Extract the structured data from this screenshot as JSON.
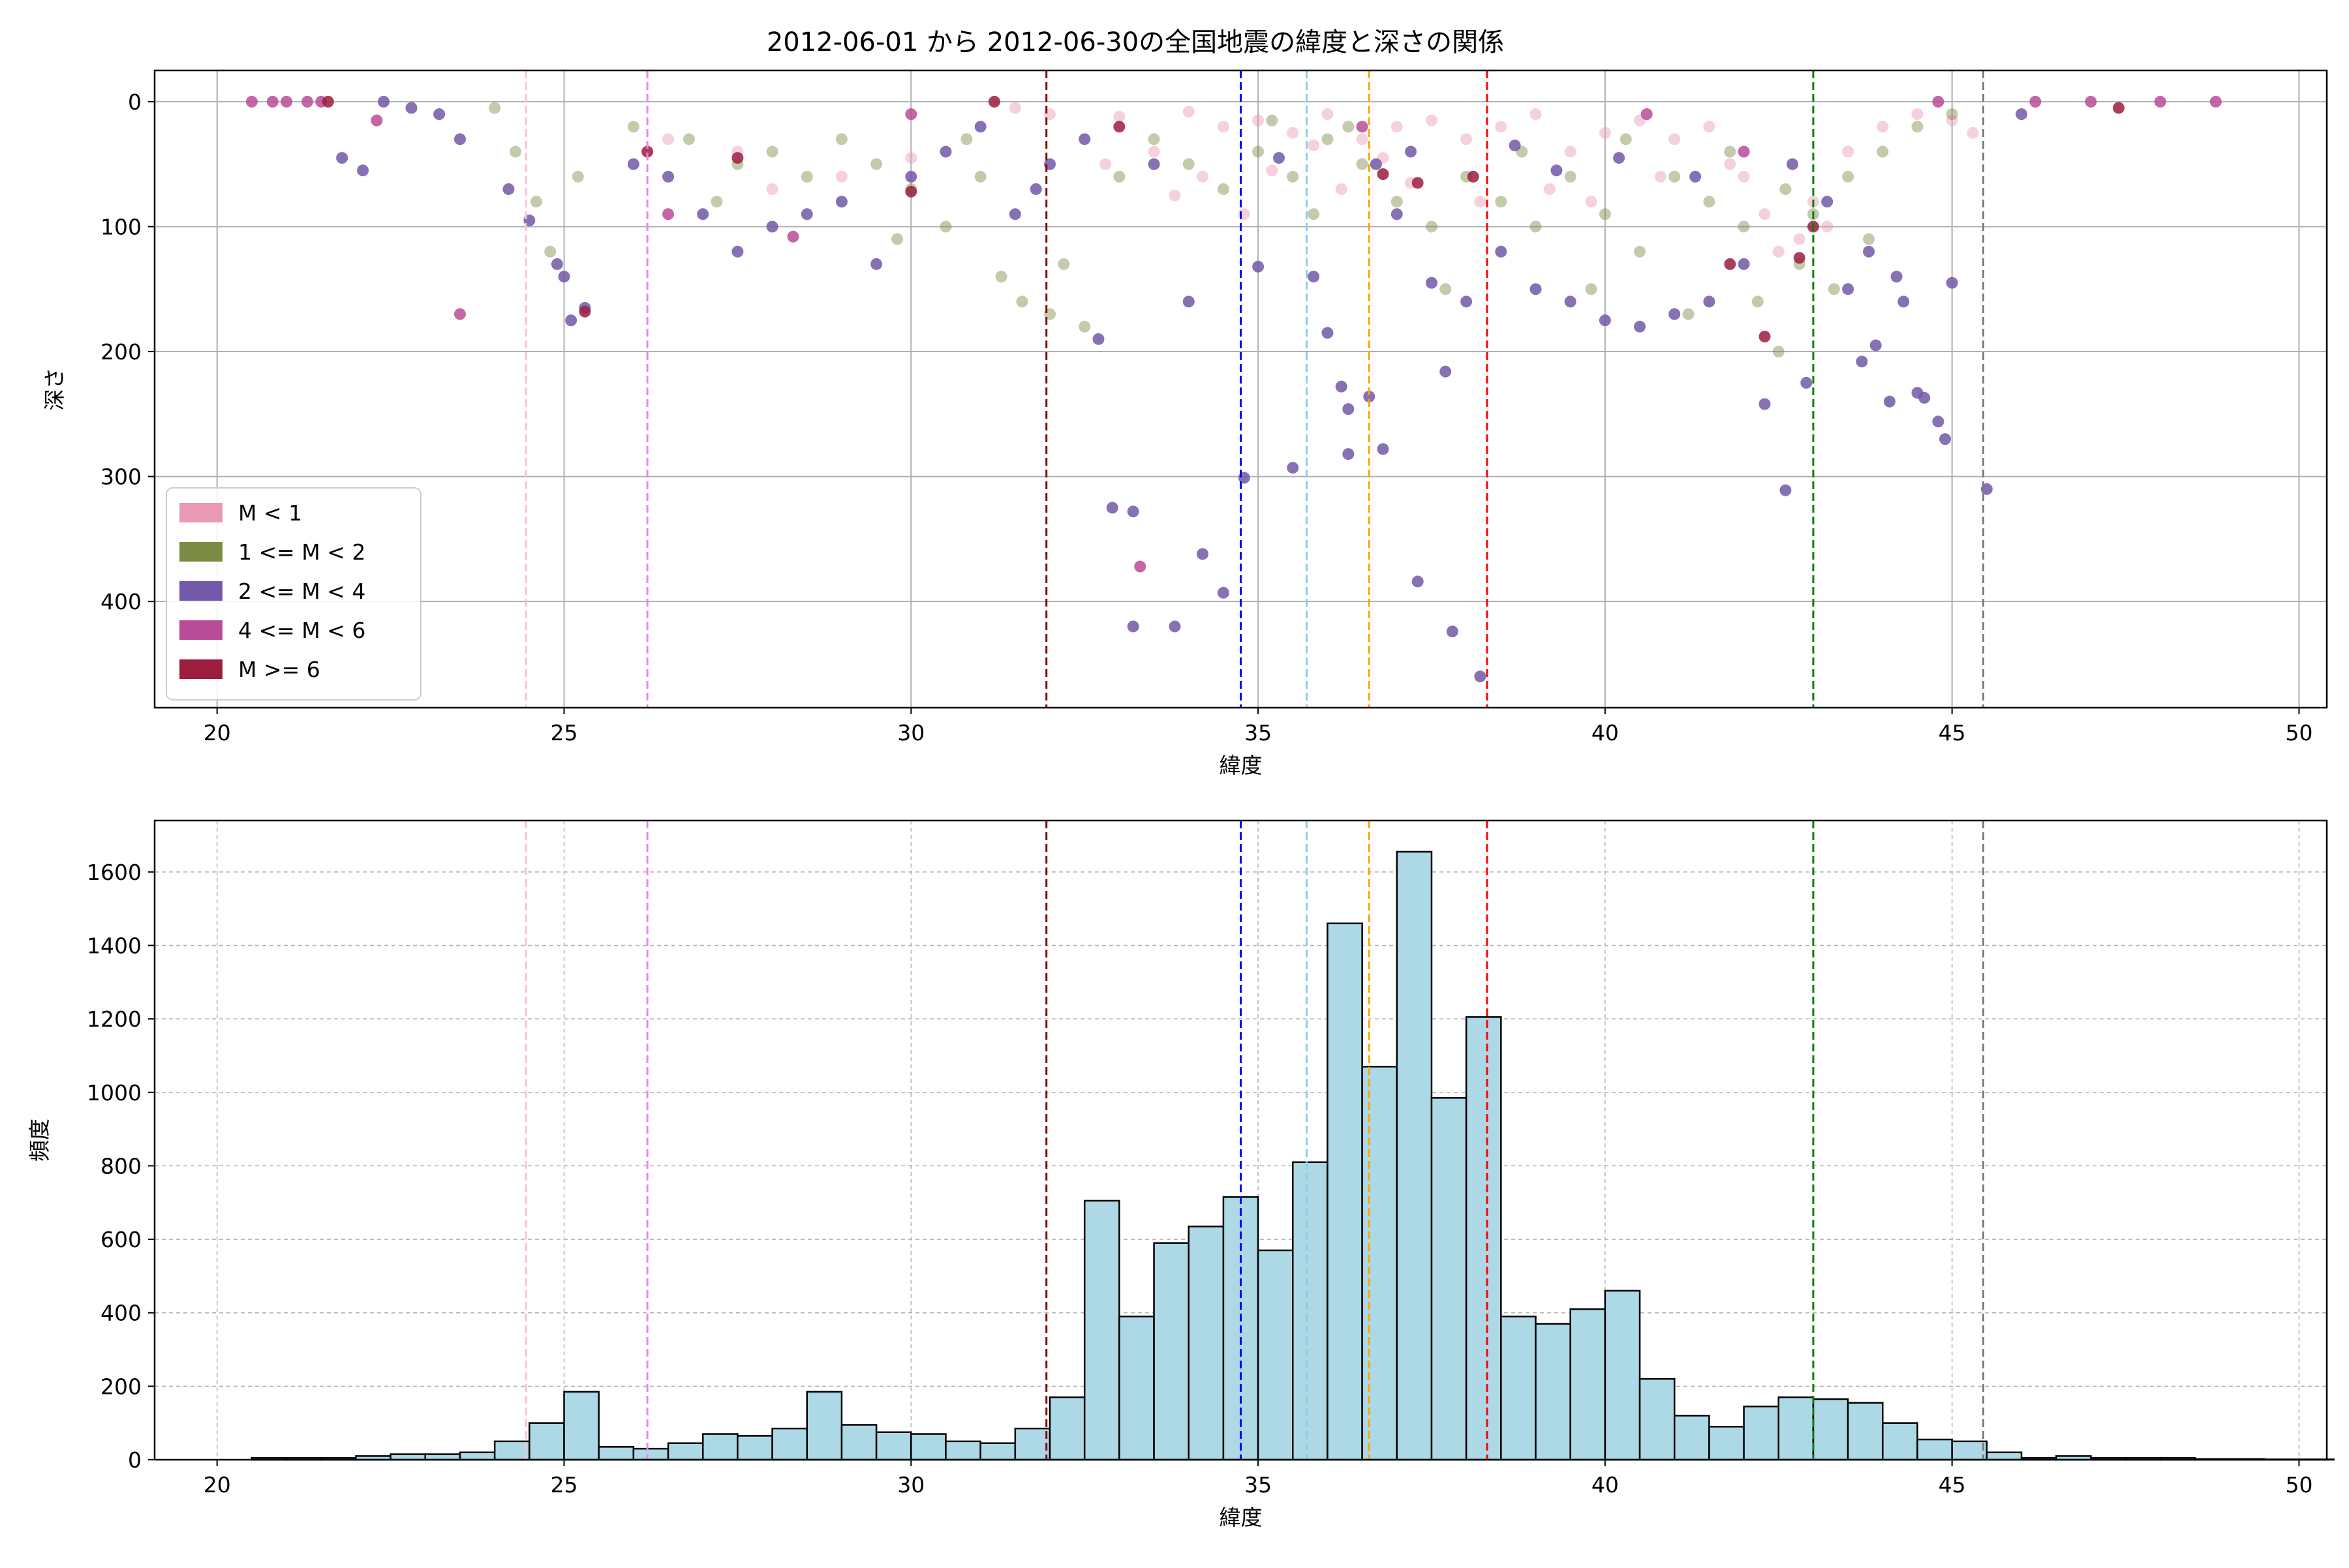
{
  "title": "2012-06-01 から 2012-06-30の全国地震の緯度と深さの関係",
  "colors": {
    "mag_lt1": "#e899b4",
    "mag_1_2": "#7b8b44",
    "mag_2_4": "#7158a8",
    "mag_4_6": "#b84c98",
    "mag_ge6": "#9c1d3e",
    "hist_bar": "#add8e6",
    "vline_pink": "#ffc0cb",
    "vline_violet": "#ee82ee",
    "vline_darkred": "#8b0000",
    "vline_blue": "#0000ff",
    "vline_skyblue": "#87ceeb",
    "vline_orange": "#ffa500",
    "vline_red": "#ff0000",
    "vline_green": "#008000",
    "vline_gray": "#808080"
  },
  "chart_data": [
    {
      "type": "scatter",
      "title": "2012-06-01 から 2012-06-30の全国地震の緯度と深さの関係",
      "xlabel": "緯度",
      "ylabel": "深さ",
      "xlim": [
        19.1,
        50.4
      ],
      "ylim": [
        485,
        -25
      ],
      "y_inverted": true,
      "grid": true,
      "legend_position": "lower-left",
      "x_ticks": [
        20,
        25,
        30,
        35,
        40,
        45,
        50
      ],
      "y_ticks": [
        0,
        100,
        200,
        300,
        400
      ],
      "vlines": [
        {
          "x": 24.45,
          "color": "#ffc0cb"
        },
        {
          "x": 26.2,
          "color": "#ee82ee"
        },
        {
          "x": 31.95,
          "color": "#8b0000"
        },
        {
          "x": 34.75,
          "color": "#0000ff"
        },
        {
          "x": 35.7,
          "color": "#87ceeb"
        },
        {
          "x": 36.6,
          "color": "#ffa500"
        },
        {
          "x": 38.3,
          "color": "#ff0000"
        },
        {
          "x": 43.0,
          "color": "#008000"
        },
        {
          "x": 45.45,
          "color": "#808080"
        }
      ],
      "series": [
        {
          "name": "M < 1",
          "color": "#e899b4",
          "points": [
            [
              31.5,
              5
            ],
            [
              32.0,
              10
            ],
            [
              33.0,
              12
            ],
            [
              34.0,
              8
            ],
            [
              34.5,
              20
            ],
            [
              35.0,
              15
            ],
            [
              35.5,
              25
            ],
            [
              36.0,
              10
            ],
            [
              36.5,
              30
            ],
            [
              37.0,
              20
            ],
            [
              37.5,
              15
            ],
            [
              38.0,
              30
            ],
            [
              38.5,
              20
            ],
            [
              39.0,
              10
            ],
            [
              39.5,
              40
            ],
            [
              40.0,
              25
            ],
            [
              40.5,
              15
            ],
            [
              41.0,
              30
            ],
            [
              41.5,
              20
            ],
            [
              42.0,
              60
            ],
            [
              42.3,
              90
            ],
            [
              42.8,
              110
            ],
            [
              43.0,
              80
            ],
            [
              43.5,
              40
            ],
            [
              44.0,
              20
            ],
            [
              44.5,
              10
            ],
            [
              45.0,
              15
            ],
            [
              45.3,
              25
            ],
            [
              33.5,
              40
            ],
            [
              34.2,
              60
            ],
            [
              35.2,
              55
            ],
            [
              36.2,
              70
            ],
            [
              37.2,
              65
            ],
            [
              38.2,
              80
            ],
            [
              39.2,
              70
            ],
            [
              30.0,
              45
            ],
            [
              29.0,
              60
            ],
            [
              28.0,
              70
            ],
            [
              27.5,
              40
            ],
            [
              26.5,
              30
            ],
            [
              36.8,
              45
            ],
            [
              35.8,
              35
            ],
            [
              34.8,
              90
            ],
            [
              33.8,
              75
            ],
            [
              32.8,
              50
            ],
            [
              41.8,
              50
            ],
            [
              42.5,
              120
            ],
            [
              43.2,
              100
            ],
            [
              40.8,
              60
            ],
            [
              39.8,
              80
            ]
          ]
        },
        {
          "name": "1 <= M < 2",
          "color": "#7b8b44",
          "points": [
            [
              24.0,
              5
            ],
            [
              24.3,
              40
            ],
            [
              24.6,
              80
            ],
            [
              24.8,
              120
            ],
            [
              25.2,
              60
            ],
            [
              26.0,
              20
            ],
            [
              26.8,
              30
            ],
            [
              27.5,
              50
            ],
            [
              28.0,
              40
            ],
            [
              28.5,
              60
            ],
            [
              29.0,
              30
            ],
            [
              29.5,
              50
            ],
            [
              30.0,
              70
            ],
            [
              30.5,
              100
            ],
            [
              31.0,
              60
            ],
            [
              31.3,
              140
            ],
            [
              31.6,
              160
            ],
            [
              32.0,
              170
            ],
            [
              32.5,
              180
            ],
            [
              32.2,
              130
            ],
            [
              33.0,
              60
            ],
            [
              33.5,
              30
            ],
            [
              34.0,
              50
            ],
            [
              34.5,
              70
            ],
            [
              35.0,
              40
            ],
            [
              35.5,
              60
            ],
            [
              35.8,
              90
            ],
            [
              36.0,
              30
            ],
            [
              36.5,
              50
            ],
            [
              37.0,
              80
            ],
            [
              37.5,
              100
            ],
            [
              37.7,
              150
            ],
            [
              38.0,
              60
            ],
            [
              38.5,
              80
            ],
            [
              39.0,
              100
            ],
            [
              39.5,
              60
            ],
            [
              39.8,
              150
            ],
            [
              40.0,
              90
            ],
            [
              40.5,
              120
            ],
            [
              41.0,
              60
            ],
            [
              41.2,
              170
            ],
            [
              41.5,
              80
            ],
            [
              42.0,
              100
            ],
            [
              42.2,
              160
            ],
            [
              42.5,
              200
            ],
            [
              42.8,
              130
            ],
            [
              43.0,
              90
            ],
            [
              43.3,
              150
            ],
            [
              43.5,
              60
            ],
            [
              44.0,
              40
            ],
            [
              44.5,
              20
            ],
            [
              45.0,
              10
            ],
            [
              36.3,
              20
            ],
            [
              35.2,
              15
            ],
            [
              38.8,
              40
            ],
            [
              40.3,
              30
            ],
            [
              41.8,
              40
            ],
            [
              42.6,
              70
            ],
            [
              43.8,
              110
            ],
            [
              30.8,
              30
            ],
            [
              29.8,
              110
            ],
            [
              27.2,
              80
            ]
          ]
        },
        {
          "name": "2 <= M < 4",
          "color": "#7158a8",
          "points": [
            [
              22.4,
              0
            ],
            [
              22.8,
              5
            ],
            [
              23.2,
              10
            ],
            [
              23.5,
              30
            ],
            [
              21.8,
              45
            ],
            [
              22.1,
              55
            ],
            [
              24.2,
              70
            ],
            [
              24.5,
              95
            ],
            [
              24.9,
              130
            ],
            [
              25.0,
              140
            ],
            [
              25.1,
              175
            ],
            [
              25.3,
              165
            ],
            [
              26.0,
              50
            ],
            [
              26.5,
              60
            ],
            [
              27.0,
              90
            ],
            [
              27.5,
              120
            ],
            [
              28.0,
              100
            ],
            [
              28.5,
              90
            ],
            [
              29.0,
              80
            ],
            [
              29.5,
              130
            ],
            [
              30.0,
              60
            ],
            [
              30.5,
              40
            ],
            [
              31.0,
              20
            ],
            [
              31.5,
              90
            ],
            [
              32.0,
              50
            ],
            [
              32.7,
              190
            ],
            [
              32.9,
              325
            ],
            [
              33.2,
              328
            ],
            [
              33.2,
              420
            ],
            [
              33.8,
              420
            ],
            [
              34.0,
              160
            ],
            [
              34.2,
              362
            ],
            [
              34.5,
              393
            ],
            [
              34.8,
              301
            ],
            [
              35.0,
              132
            ],
            [
              35.5,
              293
            ],
            [
              35.8,
              140
            ],
            [
              36.0,
              185
            ],
            [
              36.2,
              228
            ],
            [
              36.3,
              246
            ],
            [
              36.3,
              282
            ],
            [
              36.6,
              236
            ],
            [
              36.8,
              278
            ],
            [
              37.0,
              90
            ],
            [
              37.3,
              384
            ],
            [
              37.5,
              145
            ],
            [
              37.7,
              216
            ],
            [
              37.8,
              424
            ],
            [
              38.0,
              160
            ],
            [
              38.2,
              460
            ],
            [
              38.5,
              120
            ],
            [
              39.0,
              150
            ],
            [
              39.5,
              160
            ],
            [
              40.0,
              175
            ],
            [
              40.5,
              180
            ],
            [
              41.0,
              170
            ],
            [
              41.5,
              160
            ],
            [
              42.0,
              130
            ],
            [
              42.3,
              242
            ],
            [
              42.6,
              311
            ],
            [
              42.9,
              225
            ],
            [
              43.5,
              150
            ],
            [
              43.7,
              208
            ],
            [
              43.9,
              195
            ],
            [
              44.1,
              240
            ],
            [
              44.3,
              160
            ],
            [
              44.5,
              233
            ],
            [
              44.6,
              237
            ],
            [
              44.8,
              256
            ],
            [
              44.9,
              270
            ],
            [
              45.0,
              145
            ],
            [
              45.5,
              310
            ],
            [
              46.0,
              10
            ],
            [
              35.3,
              45
            ],
            [
              36.7,
              50
            ],
            [
              37.2,
              40
            ],
            [
              38.7,
              35
            ],
            [
              39.3,
              55
            ],
            [
              40.2,
              45
            ],
            [
              41.3,
              60
            ],
            [
              42.7,
              50
            ],
            [
              43.2,
              80
            ],
            [
              43.8,
              120
            ],
            [
              44.2,
              140
            ],
            [
              33.5,
              50
            ],
            [
              32.5,
              30
            ],
            [
              31.8,
              70
            ]
          ]
        },
        {
          "name": "4 <= M < 6",
          "color": "#b84c98",
          "points": [
            [
              20.5,
              0
            ],
            [
              20.8,
              0
            ],
            [
              21.0,
              0
            ],
            [
              21.3,
              0
            ],
            [
              21.5,
              0
            ],
            [
              22.3,
              15
            ],
            [
              23.5,
              170
            ],
            [
              26.5,
              90
            ],
            [
              28.3,
              108
            ],
            [
              33.3,
              372
            ],
            [
              46.2,
              0
            ],
            [
              47.0,
              0
            ],
            [
              48.0,
              0
            ],
            [
              48.8,
              0
            ],
            [
              36.5,
              20
            ],
            [
              40.6,
              10
            ],
            [
              42.0,
              40
            ],
            [
              30.0,
              10
            ],
            [
              44.8,
              0
            ]
          ]
        },
        {
          "name": "M >= 6",
          "color": "#9c1d3e",
          "points": [
            [
              21.6,
              0
            ],
            [
              25.3,
              168
            ],
            [
              26.2,
              40
            ],
            [
              27.5,
              45
            ],
            [
              30.0,
              72
            ],
            [
              31.2,
              0
            ],
            [
              37.3,
              65
            ],
            [
              38.1,
              60
            ],
            [
              41.8,
              130
            ],
            [
              42.3,
              188
            ],
            [
              42.8,
              125
            ],
            [
              43.0,
              100
            ],
            [
              47.4,
              5
            ],
            [
              36.8,
              58
            ],
            [
              33.0,
              20
            ]
          ]
        }
      ]
    },
    {
      "type": "bar",
      "subtype": "histogram",
      "xlabel": "緯度",
      "ylabel": "頻度",
      "xlim": [
        19.1,
        50.4
      ],
      "ylim": [
        0,
        1740
      ],
      "grid": true,
      "bin_start": 20.5,
      "bin_width": 0.5,
      "x_ticks": [
        20,
        25,
        30,
        35,
        40,
        45,
        50
      ],
      "y_ticks": [
        0,
        200,
        400,
        600,
        800,
        1000,
        1200,
        1400,
        1600
      ],
      "vlines": [
        {
          "x": 24.45,
          "color": "#ffc0cb"
        },
        {
          "x": 26.2,
          "color": "#ee82ee"
        },
        {
          "x": 31.95,
          "color": "#8b0000"
        },
        {
          "x": 34.75,
          "color": "#0000ff"
        },
        {
          "x": 35.7,
          "color": "#87ceeb"
        },
        {
          "x": 36.6,
          "color": "#ffa500"
        },
        {
          "x": 38.3,
          "color": "#ff0000"
        },
        {
          "x": 43.0,
          "color": "#008000"
        },
        {
          "x": 45.45,
          "color": "#808080"
        }
      ],
      "values": [
        5,
        5,
        5,
        10,
        15,
        15,
        20,
        50,
        100,
        185,
        35,
        30,
        45,
        70,
        65,
        85,
        185,
        95,
        75,
        70,
        50,
        45,
        85,
        170,
        705,
        390,
        590,
        635,
        715,
        570,
        810,
        1460,
        1070,
        1655,
        985,
        1205,
        390,
        370,
        410,
        460,
        220,
        120,
        90,
        145,
        170,
        165,
        155,
        100,
        55,
        50,
        20,
        5,
        10,
        5,
        5,
        5,
        2,
        2,
        1,
        1
      ]
    }
  ]
}
